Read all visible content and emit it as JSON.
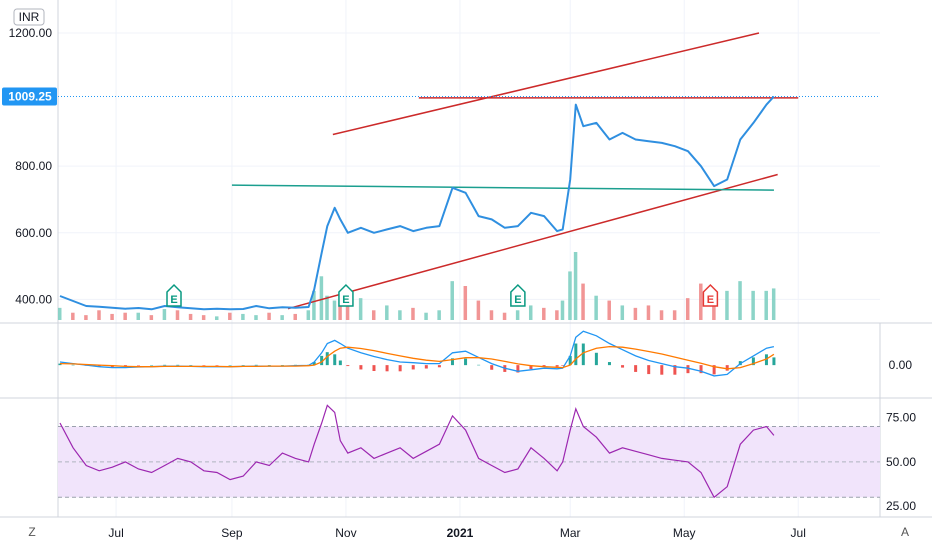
{
  "currency_label": "INR",
  "last_price_label": "1009.25",
  "corner_left": "Z",
  "corner_right": "A",
  "colors": {
    "price_line": "#2f8fe0",
    "trend_red": "#cc2a2a",
    "trend_teal": "#1b9f8f",
    "vol_up": "#7fcfc2",
    "vol_down": "#f08a8a",
    "rsi_line": "#9c27b0",
    "rsi_band": "#f1e4fb",
    "macd_line": "#2196f3",
    "signal_line": "#ff7a00",
    "hist_up": "#26a69a",
    "hist_down": "#ef5350",
    "earnings_green": "#089981",
    "earnings_red": "#e53935",
    "last_price_bg": "#2196f3"
  },
  "chart_data": [
    {
      "type": "line",
      "panel": "price",
      "y_ticks": [
        "1200.00",
        "800.00",
        "600.00",
        "400.00"
      ],
      "y_tick_values": [
        1200,
        800,
        600,
        400
      ],
      "ylim": [
        365,
        1215
      ],
      "x_ticks": [
        "Jul",
        "Sep",
        "Nov",
        "2021",
        "Mar",
        "May",
        "Jul"
      ],
      "x_tick_dates": [
        "2020-07-01",
        "2020-09-01",
        "2020-11-01",
        "2021-01-01",
        "2021-03-01",
        "2021-05-01",
        "2021-07-01"
      ],
      "x_range": [
        "2020-06-01",
        "2021-07-18"
      ],
      "series": [
        {
          "kind": "price",
          "x": [
            "2020-06-01",
            "2020-06-08",
            "2020-06-15",
            "2020-06-22",
            "2020-06-29",
            "2020-07-06",
            "2020-07-13",
            "2020-07-20",
            "2020-07-27",
            "2020-08-03",
            "2020-08-10",
            "2020-08-17",
            "2020-08-24",
            "2020-08-31",
            "2020-09-07",
            "2020-09-14",
            "2020-09-21",
            "2020-09-28",
            "2020-10-05",
            "2020-10-12",
            "2020-10-15",
            "2020-10-19",
            "2020-10-22",
            "2020-10-26",
            "2020-10-29",
            "2020-11-02",
            "2020-11-09",
            "2020-11-16",
            "2020-11-23",
            "2020-11-30",
            "2020-12-07",
            "2020-12-14",
            "2020-12-21",
            "2020-12-28",
            "2021-01-04",
            "2021-01-11",
            "2021-01-18",
            "2021-01-25",
            "2021-02-01",
            "2021-02-08",
            "2021-02-15",
            "2021-02-22",
            "2021-02-25",
            "2021-03-01",
            "2021-03-04",
            "2021-03-08",
            "2021-03-15",
            "2021-03-22",
            "2021-03-29",
            "2021-04-05",
            "2021-04-12",
            "2021-04-19",
            "2021-04-26",
            "2021-05-03",
            "2021-05-10",
            "2021-05-17",
            "2021-05-24",
            "2021-05-31",
            "2021-06-07",
            "2021-06-14",
            "2021-06-18"
          ],
          "y": [
            410,
            395,
            380,
            378,
            375,
            372,
            374,
            370,
            380,
            376,
            373,
            370,
            372,
            370,
            371,
            380,
            373,
            376,
            375,
            377,
            430,
            540,
            620,
            675,
            640,
            600,
            615,
            600,
            610,
            620,
            605,
            615,
            620,
            735,
            720,
            650,
            640,
            615,
            620,
            660,
            650,
            605,
            610,
            760,
            985,
            920,
            930,
            880,
            900,
            880,
            875,
            870,
            860,
            845,
            800,
            740,
            760,
            880,
            930,
            985,
            1009.25
          ]
        },
        {
          "kind": "volume",
          "values": [
            50,
            30,
            20,
            40,
            25,
            30,
            30,
            20,
            45,
            40,
            25,
            20,
            15,
            30,
            25,
            20,
            30,
            20,
            25,
            40,
            120,
            180,
            100,
            80,
            60,
            70,
            90,
            40,
            60,
            40,
            50,
            30,
            40,
            160,
            140,
            80,
            40,
            30,
            40,
            60,
            50,
            40,
            80,
            200,
            280,
            150,
            100,
            80,
            60,
            50,
            60,
            40,
            40,
            90,
            150,
            80,
            120,
            160,
            120,
            120,
            130
          ]
        }
      ],
      "trendlines": [
        {
          "color": "red",
          "from": {
            "x": "2020-10-25",
            "y": 895
          },
          "to": {
            "x": "2021-06-10",
            "y": 1200
          }
        },
        {
          "color": "red",
          "from": {
            "x": "2020-12-10",
            "y": 1005
          },
          "to": {
            "x": "2021-07-01",
            "y": 1005
          }
        },
        {
          "color": "red",
          "from": {
            "x": "2020-10-01",
            "y": 372
          },
          "to": {
            "x": "2021-06-20",
            "y": 775
          }
        },
        {
          "color": "teal",
          "from": {
            "x": "2020-09-01",
            "y": 743
          },
          "to": {
            "x": "2021-06-18",
            "y": 728
          }
        }
      ],
      "earnings_markers": [
        {
          "label": "E",
          "color": "green",
          "x": "2020-08-01"
        },
        {
          "label": "E",
          "color": "green",
          "x": "2020-11-01"
        },
        {
          "label": "E",
          "color": "green",
          "x": "2021-02-01"
        },
        {
          "label": "E",
          "color": "red",
          "x": "2021-05-15"
        }
      ]
    },
    {
      "type": "line",
      "panel": "macd",
      "y_ticks": [
        "0.00"
      ],
      "y_tick_values": [
        0
      ],
      "ylim": [
        -100,
        130
      ],
      "series": [
        {
          "kind": "macd",
          "values": [
            10,
            5,
            0,
            -5,
            -8,
            -8,
            -6,
            -5,
            -3,
            -3,
            -4,
            -5,
            -5,
            -5,
            -4,
            -3,
            -3,
            -3,
            -2,
            -1,
            10,
            40,
            70,
            80,
            70,
            55,
            40,
            28,
            18,
            10,
            8,
            5,
            5,
            40,
            45,
            25,
            5,
            -10,
            -20,
            -15,
            -10,
            -12,
            -10,
            30,
            90,
            110,
            95,
            70,
            50,
            30,
            15,
            5,
            -5,
            -10,
            -20,
            -35,
            -30,
            5,
            30,
            55,
            60
          ]
        },
        {
          "kind": "signal",
          "values": [
            5,
            4,
            2,
            0,
            -2,
            -4,
            -5,
            -5,
            -4,
            -4,
            -4,
            -4,
            -4,
            -5,
            -4,
            -4,
            -3,
            -3,
            -3,
            -2,
            0,
            10,
            28,
            45,
            55,
            58,
            54,
            47,
            38,
            30,
            22,
            16,
            12,
            18,
            24,
            24,
            20,
            12,
            4,
            -2,
            -5,
            -7,
            -8,
            0,
            20,
            40,
            55,
            60,
            58,
            52,
            44,
            36,
            26,
            16,
            6,
            -5,
            -12,
            -8,
            5,
            20,
            35
          ]
        },
        {
          "kind": "histogram",
          "values": [
            5,
            1,
            -2,
            -5,
            -6,
            -4,
            -1,
            0,
            1,
            1,
            0,
            -1,
            -1,
            0,
            0,
            1,
            0,
            0,
            1,
            1,
            10,
            30,
            42,
            35,
            15,
            -3,
            -14,
            -19,
            -20,
            -20,
            -14,
            -11,
            -7,
            22,
            21,
            1,
            -15,
            -22,
            -24,
            -13,
            -5,
            -5,
            -2,
            30,
            70,
            70,
            40,
            10,
            -8,
            -22,
            -29,
            -31,
            -31,
            -26,
            -26,
            -30,
            -18,
            13,
            25,
            35,
            25
          ]
        }
      ]
    },
    {
      "type": "line",
      "panel": "rsi",
      "y_ticks": [
        "75.00",
        "50.00",
        "25.00"
      ],
      "y_tick_values": [
        75,
        50,
        25
      ],
      "ylim": [
        20,
        85
      ],
      "band": [
        30,
        70
      ],
      "series": [
        {
          "kind": "rsi",
          "values": [
            72,
            58,
            48,
            45,
            47,
            50,
            46,
            44,
            48,
            52,
            50,
            45,
            44,
            40,
            42,
            50,
            48,
            55,
            52,
            50,
            60,
            72,
            82,
            78,
            62,
            55,
            58,
            52,
            55,
            58,
            52,
            56,
            60,
            76,
            68,
            52,
            48,
            44,
            46,
            58,
            52,
            45,
            50,
            68,
            80,
            70,
            64,
            55,
            58,
            56,
            54,
            52,
            51,
            50,
            44,
            30,
            36,
            60,
            68,
            70,
            65
          ]
        }
      ]
    }
  ]
}
